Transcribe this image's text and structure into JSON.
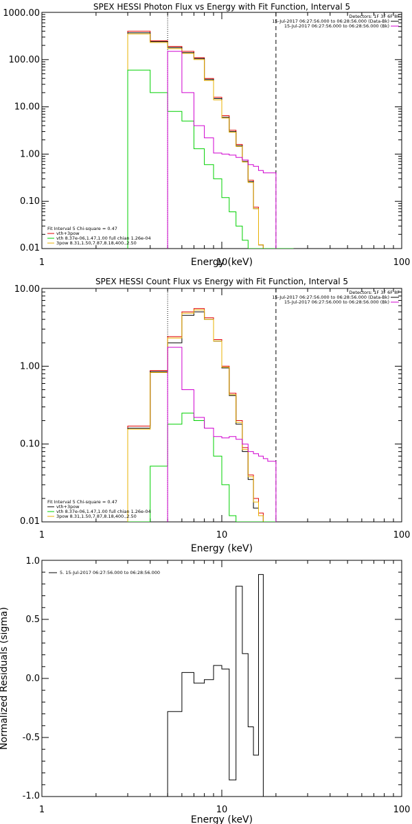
{
  "colors": {
    "black": "#000000",
    "red": "#e00000",
    "green": "#00d000",
    "magenta": "#d000d0",
    "orange": "#e8b000"
  },
  "chart_data": [
    {
      "type": "line",
      "title": "SPEX HESSI Photon Flux vs Energy with Fit Function, Interval 5",
      "xlabel": "Energy (keV)",
      "ylabel": "",
      "xscale": "log",
      "yscale": "log",
      "xlim": [
        1,
        100
      ],
      "ylim": [
        0.01,
        1000
      ],
      "x_ticks": [
        1,
        10,
        100
      ],
      "x_tick_labels": [
        "1",
        "10",
        "100"
      ],
      "y_ticks": [
        0.01,
        0.1,
        1,
        10,
        100,
        1000
      ],
      "y_tick_labels": [
        "0.01",
        "0.10",
        "1.00",
        "10.00",
        "100.00",
        "1000.00"
      ],
      "vlines": [
        {
          "x": 5.0,
          "style": "dotted"
        },
        {
          "x": 20.0,
          "style": "dashed"
        }
      ],
      "legend_top_right": {
        "header": "Detectors: 1F 3F 6F 8F",
        "entries": [
          {
            "text": "15-Jul-2017 06:27:56.000 to 06:28:56.000 (Data-Bk)",
            "color": "black"
          },
          {
            "text": "15-Jul-2017 06:27:56.000 to 06:28:56.000 (Bk)",
            "color": "magenta"
          }
        ]
      },
      "legend_bottom_left": {
        "header": "Fit Interval 5   Chi-square = 0.47",
        "entries": [
          {
            "text": "vth+3pow",
            "color": "red"
          },
          {
            "text": "vth 8.37e-06,1.47,1.00  full chian 1.26e-04",
            "color": "green"
          },
          {
            "text": "3pow 8.31,1.50,7.87,8.18,400.,2.50",
            "color": "orange"
          }
        ]
      },
      "bin_edges": [
        3,
        4,
        5,
        6,
        7,
        8,
        9,
        10,
        11,
        12,
        13,
        14,
        15,
        16,
        17,
        18,
        20,
        25
      ],
      "series": [
        {
          "name": "vth+3pow",
          "color": "red",
          "values": [
            400,
            250,
            190,
            150,
            110,
            40,
            16,
            6.5,
            3.2,
            1.6,
            0.75,
            0.28,
            0.075,
            0.012,
            0.01,
            0.01,
            0.01
          ]
        },
        {
          "name": "Data-Bk",
          "color": "black",
          "values": [
            370,
            240,
            180,
            140,
            105,
            38,
            15,
            6.0,
            3.0,
            1.5,
            0.7,
            0.26,
            0.07,
            0.012,
            0.01,
            0.01,
            0.01
          ]
        },
        {
          "name": "3pow",
          "color": "orange",
          "values": [
            350,
            230,
            170,
            135,
            100,
            36,
            14,
            5.8,
            2.9,
            1.45,
            0.68,
            0.25,
            0.07,
            0.012,
            0.01,
            0.01,
            0.01
          ]
        },
        {
          "name": "vth",
          "color": "green",
          "values": [
            60,
            20,
            8,
            5,
            1.3,
            0.6,
            0.3,
            0.12,
            0.06,
            0.03,
            0.015,
            0.008,
            0.008,
            0.008,
            0.008,
            0.008,
            0.008
          ]
        },
        {
          "name": "Bk",
          "color": "magenta",
          "values": [
            null,
            null,
            150,
            20,
            4,
            2.2,
            1.05,
            1.0,
            0.95,
            0.85,
            0.75,
            0.6,
            0.55,
            0.45,
            0.4,
            0.4,
            null
          ]
        }
      ]
    },
    {
      "type": "line",
      "title": "SPEX HESSI Count Flux vs Energy with Fit Function, Interval 5",
      "xlabel": "Energy (keV)",
      "ylabel": "",
      "xscale": "log",
      "yscale": "log",
      "xlim": [
        1,
        100
      ],
      "ylim": [
        0.01,
        10
      ],
      "x_ticks": [
        1,
        10,
        100
      ],
      "x_tick_labels": [
        "1",
        "10",
        "100"
      ],
      "y_ticks": [
        0.01,
        0.1,
        1,
        10
      ],
      "y_tick_labels": [
        "0.01",
        "0.10",
        "1.00",
        "10.00"
      ],
      "vlines": [
        {
          "x": 5.0,
          "style": "dotted"
        },
        {
          "x": 20.0,
          "style": "dashed"
        }
      ],
      "legend_top_right": {
        "header": "Detectors: 1F 3F 6F 8F",
        "entries": [
          {
            "text": "15-Jul-2017 06:27:56.000 to 06:28:56.000 (Data-Bk)",
            "color": "black"
          },
          {
            "text": "15-Jul-2017 06:27:56.000 to 06:28:56.000 (Bk)",
            "color": "magenta"
          }
        ]
      },
      "legend_bottom_left": {
        "header": "Fit Interval 5   Chi-square = 0.47",
        "entries": [
          {
            "text": "vth+3pow",
            "color": "black"
          },
          {
            "text": "vth 8.37e-06,1.47,1.00  full chian 1.26e-04",
            "color": "green"
          },
          {
            "text": "3pow 8.31,1.50,7.87,8.18,400.,2.50",
            "color": "orange"
          }
        ]
      },
      "bin_edges": [
        3,
        4,
        5,
        6,
        7,
        8,
        9,
        10,
        11,
        12,
        13,
        14,
        15,
        16,
        17,
        18,
        20
      ],
      "series": [
        {
          "name": "vth+3pow",
          "color": "red",
          "values": [
            0.17,
            0.88,
            2.4,
            5.0,
            5.5,
            4.2,
            2.2,
            1.0,
            0.45,
            0.2,
            0.09,
            0.04,
            0.02,
            0.013,
            0.01,
            0.01
          ]
        },
        {
          "name": "Data-Bk",
          "color": "black",
          "values": [
            0.16,
            0.85,
            2.0,
            4.5,
            5.0,
            4.0,
            2.1,
            0.95,
            0.42,
            0.18,
            0.08,
            0.035,
            0.015,
            0.012,
            0.01,
            0.01
          ]
        },
        {
          "name": "3pow",
          "color": "orange",
          "values": [
            0.155,
            0.83,
            2.3,
            4.8,
            5.3,
            4.0,
            2.1,
            0.97,
            0.43,
            0.19,
            0.085,
            0.038,
            0.018,
            0.012,
            0.01,
            0.01
          ]
        },
        {
          "name": "vth",
          "color": "green",
          "values": [
            0.009,
            0.052,
            0.18,
            0.25,
            0.2,
            0.16,
            0.07,
            0.03,
            0.012,
            0.008,
            0.008,
            0.008,
            0.008,
            0.008,
            0.008,
            0.008
          ]
        },
        {
          "name": "Bk",
          "color": "magenta",
          "values": [
            null,
            null,
            1.75,
            0.5,
            0.22,
            0.16,
            0.125,
            0.12,
            0.125,
            0.115,
            0.1,
            0.08,
            0.075,
            0.07,
            0.065,
            0.06
          ]
        }
      ]
    },
    {
      "type": "line",
      "title": "",
      "xlabel": "Energy (keV)",
      "ylabel": "Normalized Residuals (sigma)",
      "xscale": "log",
      "yscale": "linear",
      "xlim": [
        1,
        100
      ],
      "ylim": [
        -1.0,
        1.0
      ],
      "x_ticks": [
        1,
        10,
        100
      ],
      "x_tick_labels": [
        "1",
        "10",
        "100"
      ],
      "y_ticks": [
        -1.0,
        -0.5,
        0.0,
        0.5,
        1.0
      ],
      "y_tick_labels": [
        "-1.0",
        "-0.5",
        "0.0",
        "0.5",
        "1.0"
      ],
      "legend_top_left": {
        "entries": [
          {
            "text": "5. 15-Jul-2017 06:27:56.000 to 06:28:56.000",
            "color": "black"
          }
        ]
      },
      "bin_edges": [
        5,
        6,
        7,
        8,
        9,
        10,
        11,
        12,
        13,
        14,
        15,
        16,
        17,
        18,
        20
      ],
      "series": [
        {
          "name": "",
          "color": "black",
          "values": [
            -0.28,
            0.05,
            -0.04,
            -0.01,
            0.11,
            0.08,
            -0.86,
            0.78,
            0.21,
            -0.41,
            -0.65,
            0.88,
            null,
            null
          ]
        }
      ]
    }
  ]
}
